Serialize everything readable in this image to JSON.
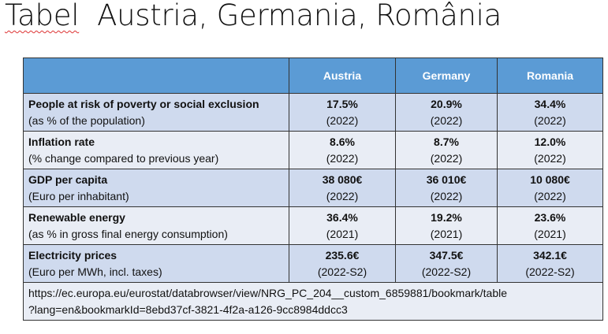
{
  "title": {
    "word1": "Tabel",
    "rest": "Austria, Germania, România"
  },
  "table": {
    "headers": [
      "",
      "Austria",
      "Germany",
      "Romania"
    ],
    "rows": [
      {
        "label": "People at risk of poverty or social exclusion",
        "sub": "(as % of the population)",
        "values": [
          {
            "v": "17.5%",
            "p": "(2022)"
          },
          {
            "v": "20.9%",
            "p": "(2022)"
          },
          {
            "v": "34.4%",
            "p": "(2022)"
          }
        ]
      },
      {
        "label": "Inflation rate",
        "sub": "(% change compared to previous year)",
        "values": [
          {
            "v": "8.6%",
            "p": "(2022)"
          },
          {
            "v": "8.7%",
            "p": "(2022)"
          },
          {
            "v": "12.0%",
            "p": "(2022)"
          }
        ]
      },
      {
        "label": "GDP per capita",
        "sub": "(Euro per inhabitant)",
        "values": [
          {
            "v": "38 080€",
            "p": "(2022)"
          },
          {
            "v": "36 010€",
            "p": "(2022)"
          },
          {
            "v": "10 080€",
            "p": "(2022)"
          }
        ]
      },
      {
        "label": "Renewable energy",
        "sub": "(as % in gross final energy consumption)",
        "values": [
          {
            "v": "36.4%",
            "p": "(2021)"
          },
          {
            "v": "19.2%",
            "p": "(2021)"
          },
          {
            "v": "23.6%",
            "p": "(2021)"
          }
        ]
      },
      {
        "label": "Electricity prices",
        "sub": "(Euro per MWh, incl. taxes)",
        "values": [
          {
            "v": "235.6€",
            "p": "(2022-S2)"
          },
          {
            "v": "347.5€",
            "p": "(2022-S2)"
          },
          {
            "v": "342.1€",
            "p": "(2022-S2)"
          }
        ]
      }
    ],
    "source_url_line1": "https://ec.europa.eu/eurostat/databrowser/view/NRG_PC_204__custom_6859881/bookmark/table",
    "source_url_line2": "?lang=en&bookmarkId=8ebd37cf-3821-4f2a-a126-9cc8984ddcc3"
  }
}
